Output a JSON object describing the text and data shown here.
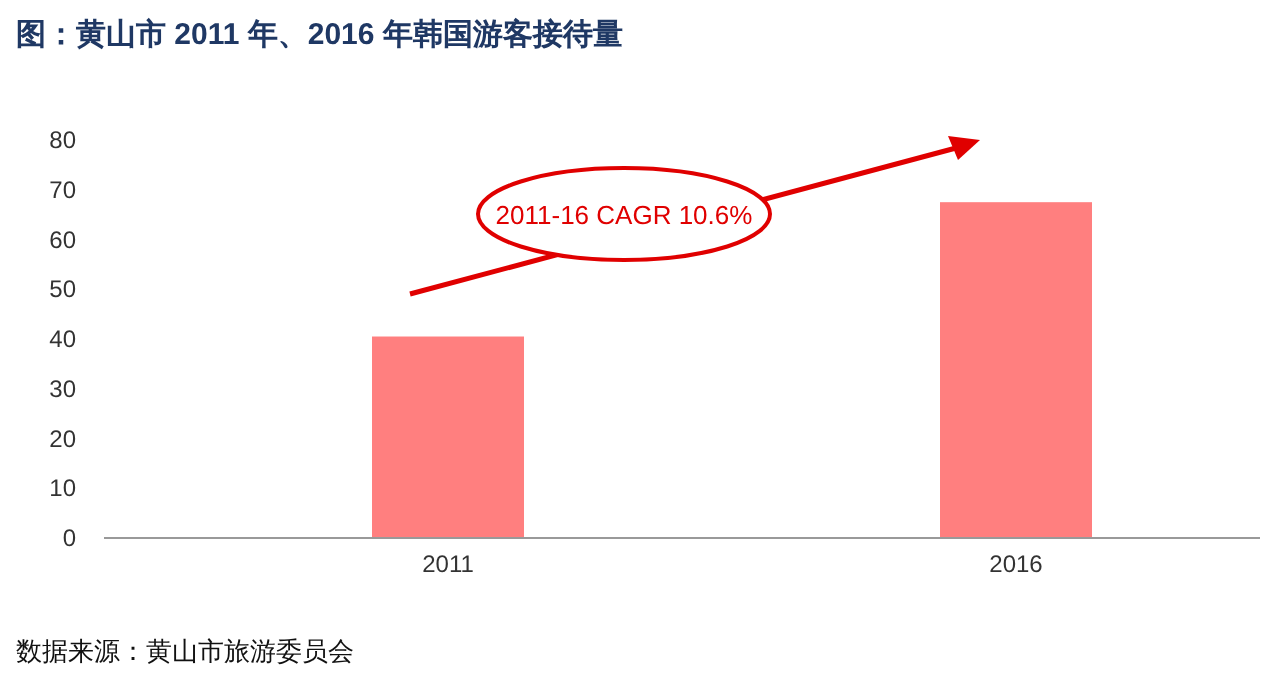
{
  "chart_data": {
    "type": "bar",
    "title": "图：黄山市 2011 年、2016 年韩国游客接待量",
    "categories": [
      "2011",
      "2016"
    ],
    "values": [
      40.5,
      67.5
    ],
    "color": "#ff7f7f",
    "ylim": [
      0,
      80
    ],
    "yticks": [
      0,
      10,
      20,
      30,
      40,
      50,
      60,
      70,
      80
    ],
    "grid": false,
    "annotations": [
      "2011-16 CAGR 10.6%",
      "数据来源：黄山市旅游委员会"
    ]
  }
}
